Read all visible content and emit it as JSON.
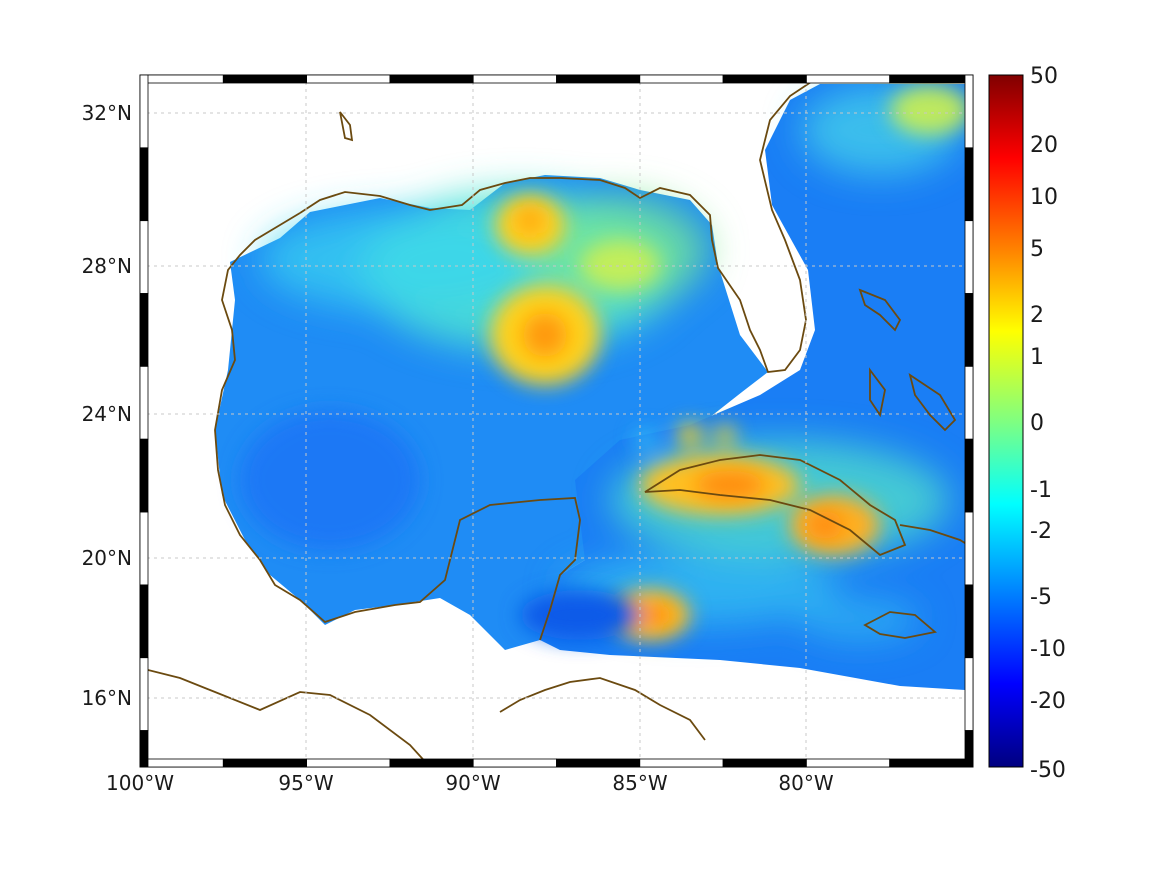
{
  "map": {
    "projection": "Mercator",
    "lon_range": [
      -100,
      -75
    ],
    "lat_range": [
      14.2,
      33
    ],
    "lon_ticks": [
      {
        "value": -100,
        "label": "100°W"
      },
      {
        "value": -95,
        "label": "95°W"
      },
      {
        "value": -90,
        "label": "90°W"
      },
      {
        "value": -85,
        "label": "85°W"
      },
      {
        "value": -80,
        "label": "80°W"
      }
    ],
    "lat_ticks": [
      {
        "value": 16,
        "label": "16°N"
      },
      {
        "value": 20,
        "label": "20°N"
      },
      {
        "value": 24,
        "label": "24°N"
      },
      {
        "value": 28,
        "label": "28°N"
      },
      {
        "value": 32,
        "label": "32°N"
      }
    ],
    "grid": true,
    "frame": "black-white checkered border",
    "coastline_color": "#6b4a10",
    "colormap": "jet",
    "colorbar_ticks": [
      "50",
      "20",
      "10",
      "5",
      "2",
      "1",
      "0",
      "-1",
      "-2",
      "-5",
      "-10",
      "-20",
      "-50"
    ],
    "colorbar_range": [
      -50,
      50
    ],
    "field_features": [
      {
        "description": "central Gulf maximum",
        "value": 3
      },
      {
        "description": "Mississippi delta maximum",
        "value": 2
      },
      {
        "description": "Cuba maximum",
        "value": 5
      },
      {
        "description": "Honduras offshore maximum",
        "value": 5
      },
      {
        "description": "Bay of Campeche minimum",
        "value": -8
      },
      {
        "description": "Atlantic minimum",
        "value": -8
      }
    ]
  }
}
